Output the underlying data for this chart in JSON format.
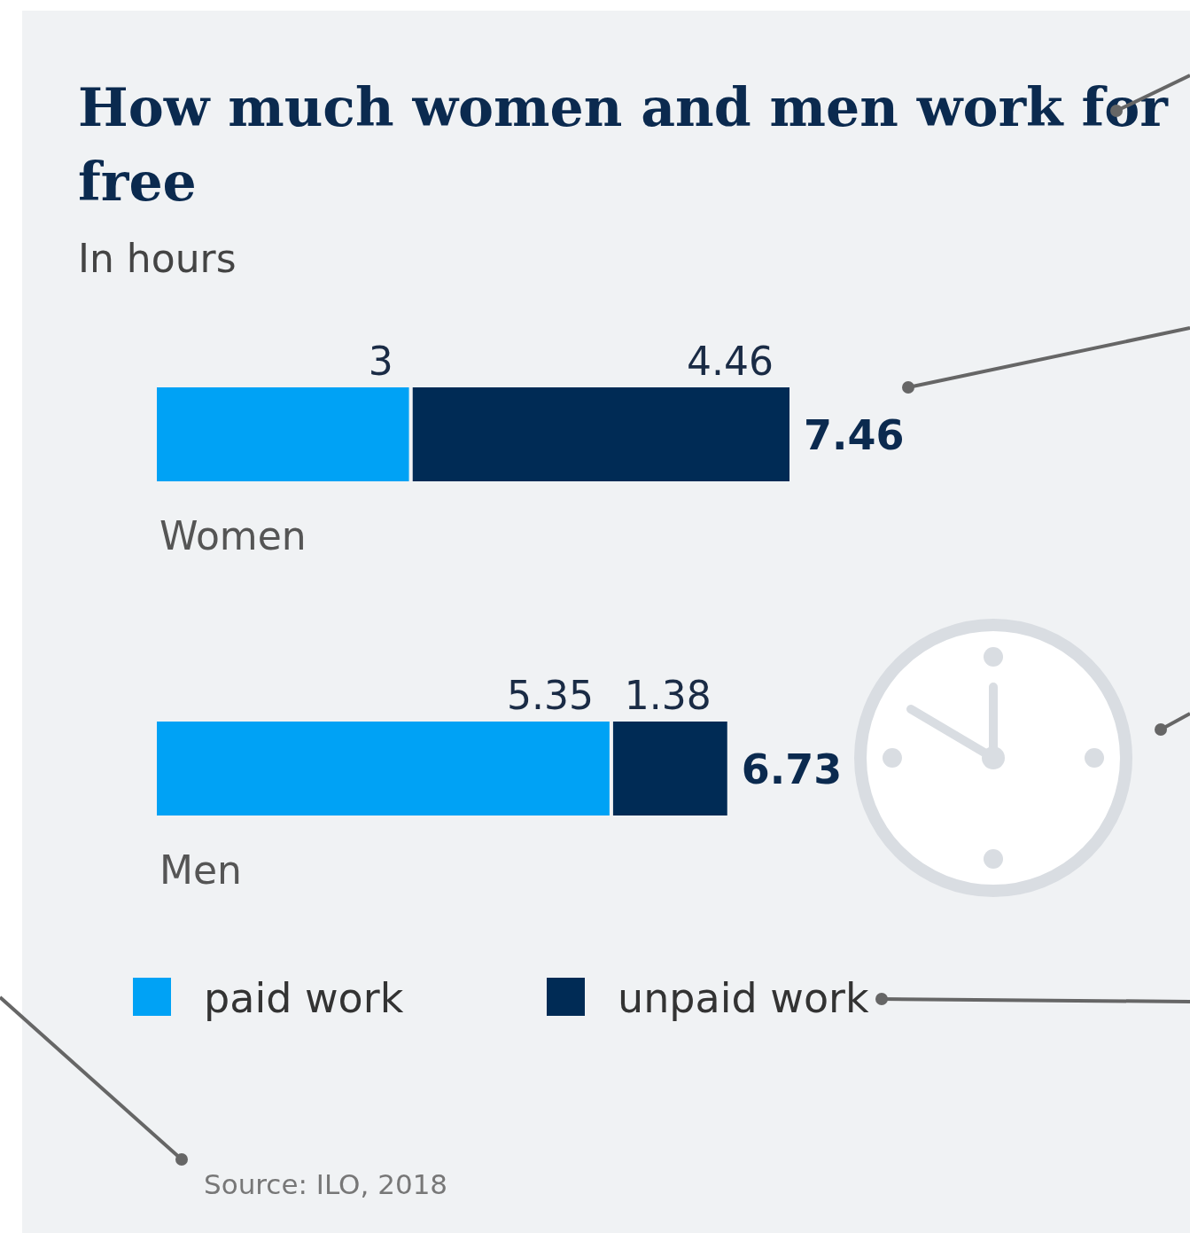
{
  "chart_data": {
    "type": "bar",
    "orientation": "horizontal",
    "stacked": true,
    "title": "How much women and men work for free",
    "subtitle": "In hours",
    "categories": [
      "Women",
      "Men"
    ],
    "series": [
      {
        "name": "paid work",
        "color": "#00a2f5",
        "values": [
          3,
          5.35
        ]
      },
      {
        "name": "unpaid work",
        "color": "#002b55",
        "values": [
          4.46,
          1.38
        ]
      }
    ],
    "data_labels": true,
    "totals": [
      "7.46",
      "6.73"
    ],
    "legend": "bottom",
    "annotations": [
      "Source: ILO, 2018"
    ]
  }
}
